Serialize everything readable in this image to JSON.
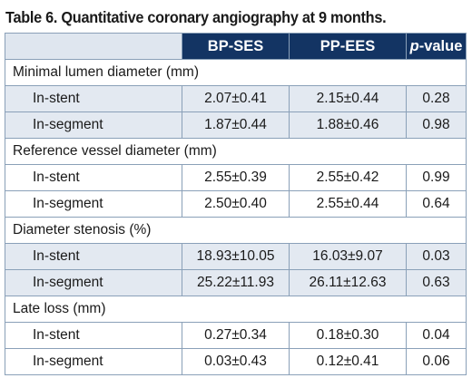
{
  "caption": "Table 6. Quantitative coronary angiography at 9 months.",
  "headers": [
    "",
    "BP-SES",
    "PP-EES",
    "p",
    "-value"
  ],
  "sections": [
    {
      "title": "Minimal lumen diameter (mm)",
      "rows": [
        {
          "label": "In-stent",
          "bp_ses": "2.07±0.41",
          "pp_ees": "2.15±0.44",
          "p": "0.28"
        },
        {
          "label": "In-segment",
          "bp_ses": "1.87±0.44",
          "pp_ees": "1.88±0.46",
          "p": "0.98"
        }
      ]
    },
    {
      "title": "Reference vessel diameter (mm)",
      "rows": [
        {
          "label": "In-stent",
          "bp_ses": "2.55±0.39",
          "pp_ees": "2.55±0.42",
          "p": "0.99"
        },
        {
          "label": "In-segment",
          "bp_ses": "2.50±0.40",
          "pp_ees": "2.55±0.44",
          "p": "0.64"
        }
      ]
    },
    {
      "title": "Diameter stenosis (%)",
      "rows": [
        {
          "label": "In-stent",
          "bp_ses": "18.93±10.05",
          "pp_ees": "16.03±9.07",
          "p": "0.03"
        },
        {
          "label": "In-segment",
          "bp_ses": "25.22±11.93",
          "pp_ees": "26.11±12.63",
          "p": "0.63"
        }
      ]
    },
    {
      "title": "Late loss (mm)",
      "rows": [
        {
          "label": "In-stent",
          "bp_ses": "0.27±0.34",
          "pp_ees": "0.18±0.30",
          "p": "0.04"
        },
        {
          "label": "In-segment",
          "bp_ses": "0.03±0.43",
          "pp_ees": "0.12±0.41",
          "p": "0.06"
        }
      ]
    }
  ],
  "colors": {
    "header_bg": "#133463",
    "header_text": "#ffffff",
    "row_shade": "#e3e9f1",
    "border": "#8aa0b8"
  }
}
